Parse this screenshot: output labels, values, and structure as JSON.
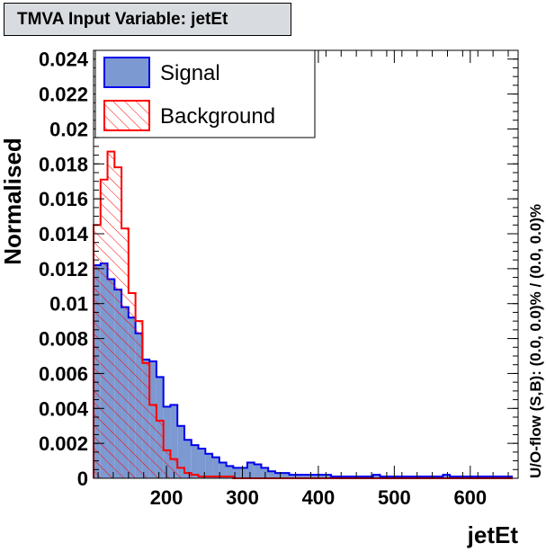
{
  "title": "TMVA Input Variable: jetEt",
  "chart_data": {
    "type": "histogram",
    "xlabel": "jetEt",
    "ylabel": "Normalised",
    "overflow_label": "U/O-flow (S,B): (0.0, 0.0)% / (0.0, 0.0)%",
    "xlim": [
      104,
      663
    ],
    "ylim": [
      0,
      0.0245
    ],
    "x_ticks": [
      200,
      300,
      400,
      500,
      600
    ],
    "x_tick_labels": [
      "200",
      "300",
      "400",
      "500",
      "600"
    ],
    "y_ticks": [
      0,
      0.002,
      0.004,
      0.006,
      0.008,
      0.01,
      0.012,
      0.014,
      0.016,
      0.018,
      0.02,
      0.022,
      0.024
    ],
    "y_tick_labels": [
      "0",
      "0.002",
      "0.004",
      "0.006",
      "0.008",
      "0.01",
      "0.012",
      "0.014",
      "0.016",
      "0.018",
      "0.02",
      "0.022",
      "0.024"
    ],
    "bin_edges_start": 104,
    "bin_width": 9.2,
    "legend_position": "top-left",
    "series": [
      {
        "name": "Signal",
        "fill": "#7d99d1",
        "line": "#0000ee",
        "style": "solid-fill",
        "values": [
          0.0122,
          0.0123,
          0.0114,
          0.0108,
          0.0098,
          0.0092,
          0.0083,
          0.0068,
          0.0067,
          0.0058,
          0.0041,
          0.0042,
          0.003,
          0.0022,
          0.0019,
          0.0017,
          0.0014,
          0.0012,
          0.0009,
          0.0007,
          0.0006,
          0.0006,
          0.0009,
          0.0008,
          0.0006,
          0.0004,
          0.0003,
          0.0003,
          0.0002,
          0.0002,
          0.0002,
          0.0002,
          0.0002,
          0.0002,
          0.0001,
          0.0001,
          0.0001,
          0.0001,
          0.0001,
          0.0001,
          0.0002,
          0.0001,
          0.0001,
          0.0001,
          0.0001,
          0.0001,
          0.0001,
          0.0001,
          0.0001,
          0.0001,
          0.0002,
          0.0001,
          0.0001,
          0.0001,
          0.0001,
          0.0001,
          0.0001,
          0.0001,
          0.0001,
          0.0001
        ]
      },
      {
        "name": "Background",
        "fill": "none",
        "line": "#ff0000",
        "style": "hatched",
        "values": [
          0.0145,
          0.0171,
          0.0187,
          0.0178,
          0.0143,
          0.0106,
          0.009,
          0.0066,
          0.0042,
          0.0033,
          0.0016,
          0.0011,
          0.0006,
          0.0003,
          0.0002,
          0.0001,
          0.0001,
          0.0001,
          0.0001,
          0.0001,
          0.0,
          0.0,
          0.0,
          0.0,
          0.0,
          0.0,
          0.0,
          0.0,
          0.0,
          0.0,
          0.0,
          0.0,
          0.0,
          0.0,
          0.0,
          0.0,
          0.0,
          0.0,
          0.0,
          0.0,
          0.0,
          0.0,
          0.0,
          0.0,
          0.0,
          0.0,
          0.0,
          0.0,
          0.0,
          0.0,
          0.0,
          0.0,
          0.0,
          0.0,
          0.0,
          0.0,
          0.0,
          0.0,
          0.0,
          0.0
        ]
      }
    ]
  }
}
